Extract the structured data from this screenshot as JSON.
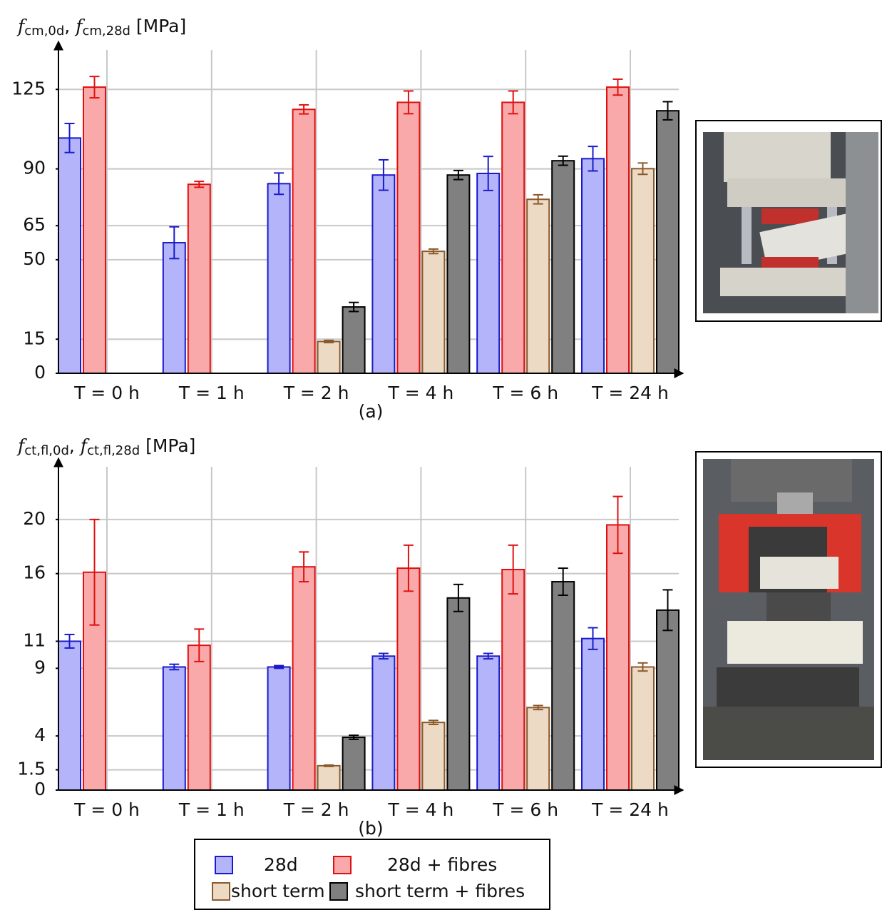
{
  "chart_data": [
    {
      "type": "bar",
      "ylabel": [
        {
          "text": "f",
          "italic": true
        },
        {
          "text": "cm,0d",
          "sub": true
        },
        {
          "text": ", "
        },
        {
          "text": "f",
          "italic": true
        },
        {
          "text": "cm,28d",
          "sub": true
        },
        {
          "text": " [MPa]"
        }
      ],
      "caption": "(a)",
      "categories": [
        "T = 0 h",
        "T = 1 h",
        "T = 2 h",
        "T = 4 h",
        "T = 6 h",
        "T = 24 h"
      ],
      "ylim": [
        0,
        143
      ],
      "yticks": [
        0,
        15,
        50,
        65,
        90,
        125
      ],
      "grid": true,
      "series": [
        {
          "color": "#b4b4fa",
          "edge": "#1a1acc",
          "values": [
            103.6,
            57.5,
            83.5,
            87.3,
            88,
            94.5
          ],
          "errors": [
            6.4,
            7,
            4.7,
            6.7,
            7.5,
            5.4
          ]
        },
        {
          "color": "#f9a9a9",
          "edge": "#e01010",
          "values": [
            126,
            83.2,
            116.2,
            119.3,
            119.3,
            126
          ],
          "errors": [
            4.7,
            1.3,
            2,
            5,
            5,
            3.5
          ]
        },
        {
          "color": "#ecdac4",
          "edge": "#8b5a2b",
          "values": [
            0,
            0,
            14,
            53.7,
            76.6,
            90.1
          ],
          "errors": [
            0,
            0,
            0.5,
            1,
            2,
            2.5
          ]
        },
        {
          "color": "#808080",
          "edge": "#000000",
          "values": [
            0,
            0,
            29.2,
            87.3,
            93.6,
            115.6
          ],
          "errors": [
            0,
            0,
            2,
            2,
            2,
            4
          ]
        }
      ]
    },
    {
      "type": "bar",
      "ylabel": [
        {
          "text": "f",
          "italic": true
        },
        {
          "text": "ct,fl,0d",
          "sub": true
        },
        {
          "text": ", "
        },
        {
          "text": "f",
          "italic": true
        },
        {
          "text": "ct,fl,28d",
          "sub": true
        },
        {
          "text": " [MPa]"
        }
      ],
      "caption": "(b)",
      "categories": [
        "T = 0 h",
        "T = 1 h",
        "T = 2 h",
        "T = 4 h",
        "T = 6 h",
        "T = 24 h"
      ],
      "ylim": [
        0,
        24
      ],
      "yticks": [
        0,
        1.5,
        4,
        9,
        11,
        16,
        20
      ],
      "grid": true,
      "series": [
        {
          "name": "28d",
          "color": "#b4b4fa",
          "edge": "#1a1acc",
          "values": [
            11,
            9.1,
            9.1,
            9.9,
            9.9,
            11.2
          ],
          "errors": [
            0.5,
            0.2,
            0.1,
            0.2,
            0.2,
            0.8
          ]
        },
        {
          "name": "28d + fibres",
          "color": "#f9a9a9",
          "edge": "#e01010",
          "values": [
            16.1,
            10.7,
            16.5,
            16.4,
            16.3,
            19.6
          ],
          "errors": [
            3.9,
            1.2,
            1.1,
            1.7,
            1.8,
            2.1
          ]
        },
        {
          "name": "short term",
          "color": "#ecdac4",
          "edge": "#8b5a2b",
          "values": [
            0,
            0,
            1.8,
            5,
            6.1,
            9.1
          ],
          "errors": [
            0,
            0,
            0.05,
            0.15,
            0.15,
            0.3
          ]
        },
        {
          "name": "short term + fibres",
          "color": "#808080",
          "edge": "#000000",
          "values": [
            0,
            0,
            3.9,
            14.2,
            15.4,
            13.3
          ],
          "errors": [
            0,
            0,
            0.15,
            1,
            1,
            1.5
          ]
        }
      ]
    }
  ]
}
